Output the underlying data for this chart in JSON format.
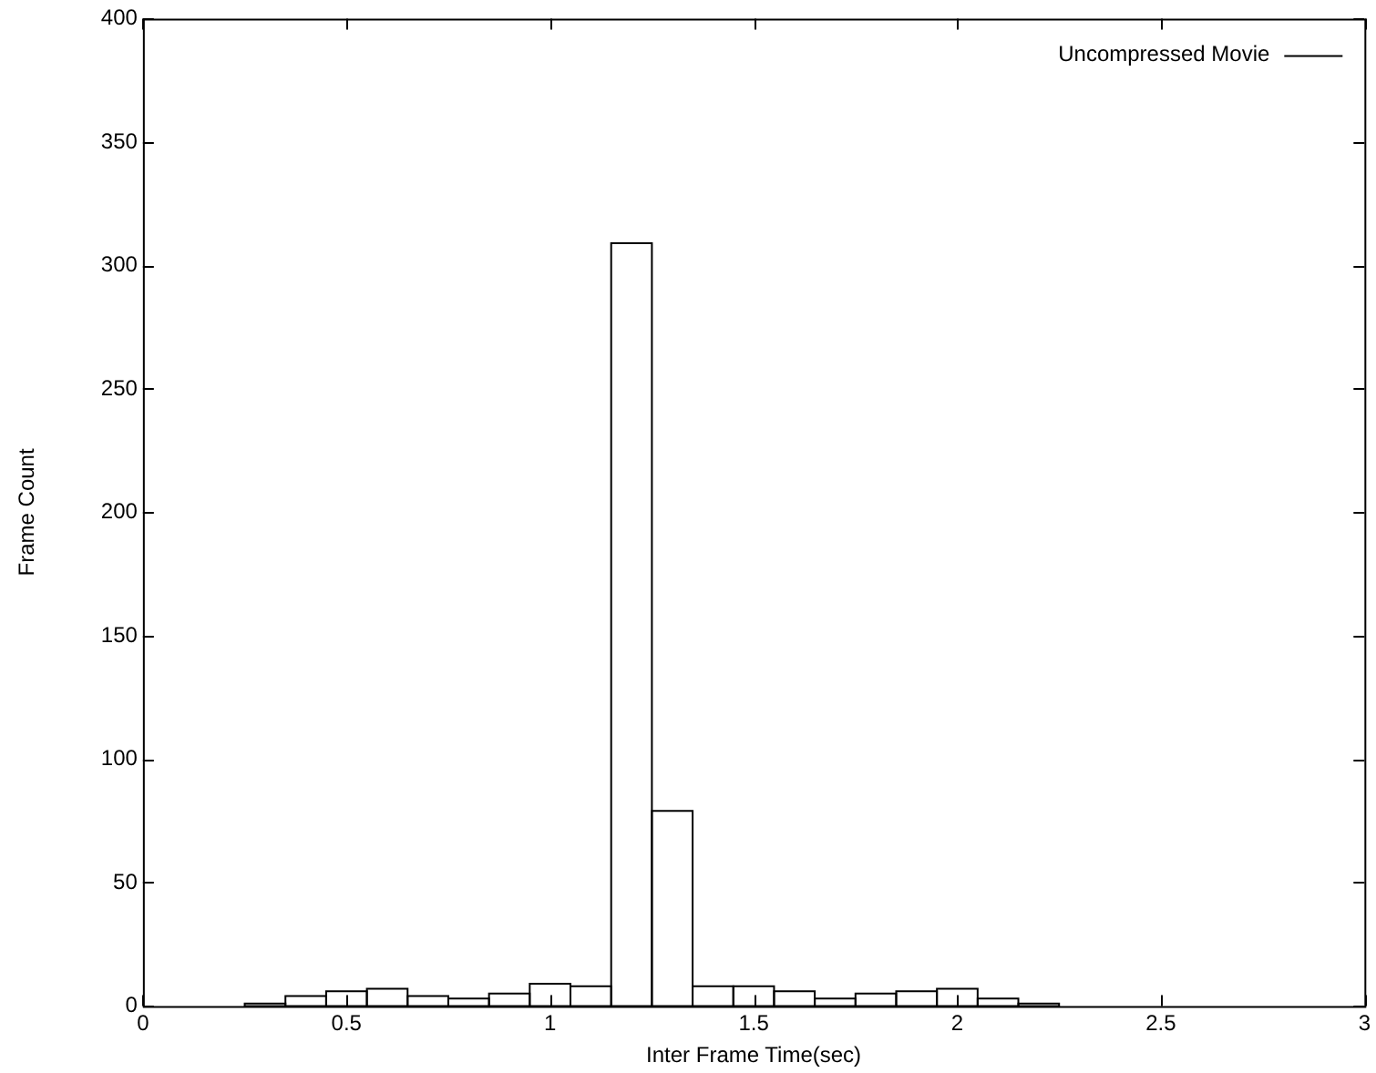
{
  "chart_data": {
    "type": "histogram",
    "xlabel": "Inter Frame Time(sec)",
    "ylabel": "Frame Count",
    "bins": [
      0.25,
      0.35,
      0.45,
      0.55,
      0.65,
      0.75,
      0.85,
      0.95,
      1.05,
      1.15,
      1.25,
      1.35,
      1.45,
      1.55,
      1.65,
      1.75,
      1.85,
      1.95,
      2.05,
      2.15,
      2.25
    ],
    "series": [
      {
        "name": "Uncompressed Movie",
        "color": "#ffffff",
        "values": [
          1,
          4,
          6,
          7,
          4,
          3,
          5,
          9,
          8,
          309,
          79,
          8,
          8,
          6,
          3,
          5,
          6,
          7,
          3,
          1
        ]
      }
    ],
    "xlim": [
      0,
      3
    ],
    "xticks": [
      0,
      0.5,
      1,
      1.5,
      2,
      2.5,
      3
    ],
    "ylim": [
      0,
      400
    ],
    "yticks": [
      0,
      50,
      100,
      150,
      200,
      250,
      300,
      350,
      400
    ],
    "grid": false,
    "legend": "top right"
  }
}
